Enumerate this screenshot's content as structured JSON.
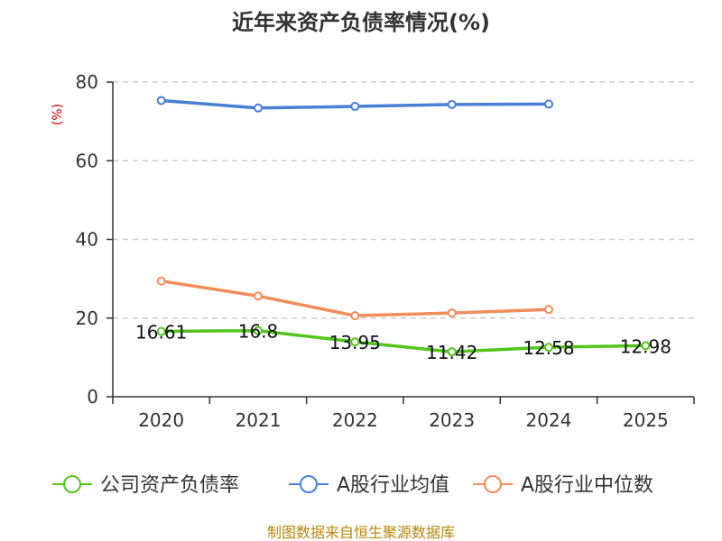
{
  "chart_data": {
    "type": "line",
    "title": "近年来资产负债率情况(%)",
    "ylabel": "(%)",
    "xlabel": "",
    "categories": [
      "2020",
      "2021",
      "2022",
      "2023",
      "2024",
      "2025"
    ],
    "ylim": [
      0,
      80
    ],
    "yticks": [
      0,
      20,
      40,
      60,
      80
    ],
    "grid": true,
    "legend_position": "bottom",
    "series": [
      {
        "name": "公司资产负债率",
        "color": "#52c41a",
        "values": [
          16.61,
          16.8,
          13.95,
          11.42,
          12.58,
          12.98
        ],
        "labels": [
          "16.61",
          "16.8",
          "13.95",
          "11.42",
          "12.58",
          "12.98"
        ]
      },
      {
        "name": "A股行业均值",
        "color": "#4a7fd8",
        "values": [
          75.3,
          73.4,
          73.8,
          74.3,
          74.4,
          null
        ]
      },
      {
        "name": "A股行业中位数",
        "color": "#f28c5a",
        "values": [
          29.4,
          25.6,
          20.6,
          21.3,
          22.2,
          null
        ]
      }
    ],
    "source": "制图数据来自恒生聚源数据库"
  }
}
